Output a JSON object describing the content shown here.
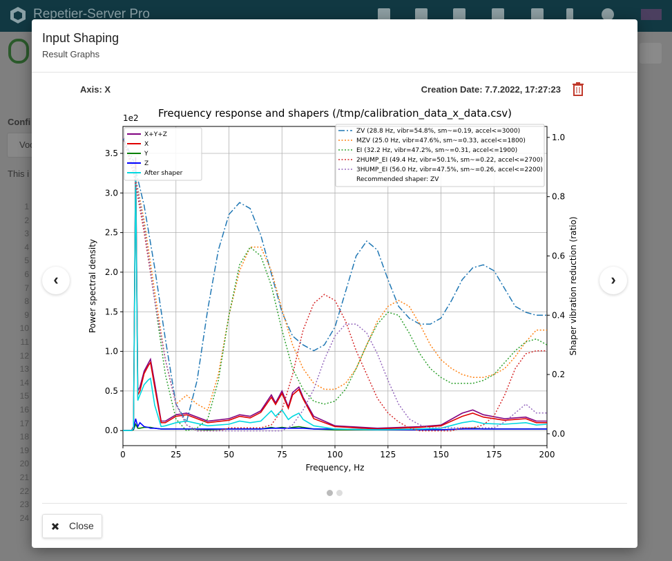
{
  "app": {
    "title": "Repetier-Server Pro"
  },
  "background": {
    "config_label": "Confi",
    "select_text": "Voc",
    "info_text": "This i",
    "line_numbers": [
      1,
      2,
      3,
      4,
      5,
      6,
      7,
      8,
      9,
      10,
      11,
      12,
      13,
      14,
      15,
      16,
      17,
      18,
      19,
      20,
      21,
      22,
      23,
      24
    ]
  },
  "modal": {
    "title": "Input Shaping",
    "subtitle": "Result Graphs",
    "axis": "Axis: X",
    "creation_date": "Creation Date: 7.7.2022, 17:27:23",
    "close": "Close"
  },
  "chart_data": {
    "type": "line",
    "title": "Frequency response and shapers (/tmp/calibration_data_x_data.csv)",
    "x_label": "Frequency, Hz",
    "y_label": "Power spectral density",
    "y2_label": "Shaper vibration reduction (ratio)",
    "y_offset_text": "1e2",
    "annotation": "Recommended shaper: ZV",
    "grid": true,
    "xlim": [
      0,
      200
    ],
    "xticks": [
      0,
      25,
      50,
      75,
      100,
      125,
      150,
      175,
      200
    ],
    "ylim": [
      -0.19,
      3.84
    ],
    "yticks": [
      {
        "value": 0,
        "label": "0.0"
      },
      {
        "value": 0.5,
        "label": "0.5"
      },
      {
        "value": 1,
        "label": "1.0"
      },
      {
        "value": 1.5,
        "label": "1.5"
      },
      {
        "value": 2,
        "label": "2.0"
      },
      {
        "value": 2.5,
        "label": "2.5"
      },
      {
        "value": 3,
        "label": "3.0"
      },
      {
        "value": 3.5,
        "label": "3.5"
      }
    ],
    "y2lim": [
      -0.04,
      1.037
    ],
    "y2ticks": [
      {
        "value": 0,
        "label": "0.0"
      },
      {
        "value": 0.2,
        "label": "0.2"
      },
      {
        "value": 0.4,
        "label": "0.4"
      },
      {
        "value": 0.6,
        "label": "0.6"
      },
      {
        "value": 0.8,
        "label": "0.8"
      },
      {
        "value": 1,
        "label": "1.0"
      }
    ],
    "series": [
      {
        "name": "X+Y+Z",
        "color": "#800080",
        "style": "solid",
        "x": [
          0,
          4,
          5,
          6,
          7,
          8,
          10,
          12,
          13,
          15,
          18,
          20,
          25,
          30,
          40,
          50,
          55,
          60,
          65,
          70,
          72,
          75,
          78,
          80,
          83,
          85,
          90,
          100,
          120,
          140,
          150,
          160,
          165,
          170,
          180,
          190,
          195,
          200
        ],
        "values": [
          0,
          0,
          0.05,
          3.45,
          0.5,
          0.55,
          0.75,
          0.85,
          0.9,
          0.6,
          0.12,
          0.12,
          0.2,
          0.22,
          0.12,
          0.15,
          0.2,
          0.18,
          0.25,
          0.45,
          0.35,
          0.5,
          0.3,
          0.48,
          0.55,
          0.42,
          0.18,
          0.06,
          0.03,
          0.05,
          0.07,
          0.22,
          0.26,
          0.2,
          0.15,
          0.17,
          0.12,
          0.12
        ]
      },
      {
        "name": "X",
        "color": "#e00000",
        "style": "solid",
        "x": [
          0,
          4,
          5,
          6,
          7,
          8,
          10,
          12,
          13,
          15,
          18,
          20,
          25,
          30,
          40,
          50,
          55,
          60,
          65,
          70,
          72,
          75,
          78,
          80,
          83,
          85,
          90,
          100,
          120,
          140,
          150,
          160,
          165,
          170,
          180,
          190,
          195,
          200
        ],
        "values": [
          0,
          0,
          0.04,
          3.4,
          0.45,
          0.5,
          0.72,
          0.82,
          0.86,
          0.55,
          0.1,
          0.1,
          0.18,
          0.2,
          0.1,
          0.13,
          0.18,
          0.16,
          0.23,
          0.42,
          0.33,
          0.47,
          0.28,
          0.45,
          0.52,
          0.4,
          0.15,
          0.05,
          0.02,
          0.04,
          0.06,
          0.18,
          0.22,
          0.17,
          0.13,
          0.15,
          0.1,
          0.1
        ]
      },
      {
        "name": "Y",
        "color": "#008000",
        "style": "solid",
        "x": [
          0,
          4,
          5,
          6,
          7,
          8,
          10,
          12,
          13,
          15,
          18,
          20,
          25,
          30,
          40,
          50,
          55,
          60,
          65,
          70,
          72,
          75,
          78,
          80,
          83,
          85,
          90,
          100,
          120,
          140,
          150,
          160,
          165,
          170,
          180,
          190,
          195,
          200
        ],
        "values": [
          0,
          0,
          0.01,
          0.08,
          0.03,
          0.03,
          0.04,
          0.04,
          0.04,
          0.03,
          0.02,
          0.02,
          0.02,
          0.02,
          0.01,
          0.02,
          0.02,
          0.02,
          0.02,
          0.04,
          0.03,
          0.04,
          0.03,
          0.04,
          0.05,
          0.04,
          0.02,
          0.01,
          0.01,
          0.01,
          0.01,
          0.02,
          0.03,
          0.02,
          0.02,
          0.02,
          0.02,
          0.02
        ]
      },
      {
        "name": "Z",
        "color": "#0000ff",
        "style": "solid",
        "x": [
          0,
          4,
          5,
          6,
          7,
          8,
          10,
          12,
          13,
          15,
          18,
          20,
          25,
          30,
          40,
          50,
          55,
          60,
          65,
          70,
          72,
          75,
          78,
          80,
          83,
          85,
          90,
          100,
          120,
          140,
          150,
          160,
          165,
          170,
          180,
          190,
          195,
          200
        ],
        "values": [
          0,
          0,
          0.02,
          0.15,
          0.05,
          0.1,
          0.05,
          0.04,
          0.03,
          0.03,
          0.02,
          0.02,
          0.02,
          0.02,
          0.02,
          0.02,
          0.02,
          0.02,
          0.02,
          0.03,
          0.03,
          0.03,
          0.03,
          0.03,
          0.03,
          0.03,
          0.02,
          0.02,
          0.01,
          0.01,
          0.01,
          0.02,
          0.02,
          0.02,
          0.02,
          0.02,
          0.02,
          0.02
        ]
      },
      {
        "name": "After shaper",
        "color": "#00d8e0",
        "style": "solid",
        "x": [
          0,
          4,
          5,
          6,
          7,
          8,
          10,
          12,
          13,
          15,
          18,
          20,
          25,
          30,
          40,
          50,
          55,
          60,
          65,
          70,
          72,
          75,
          78,
          80,
          83,
          85,
          90,
          100,
          120,
          140,
          150,
          160,
          165,
          170,
          180,
          190,
          195,
          200
        ],
        "values": [
          0,
          0,
          0.03,
          3.3,
          0.38,
          0.45,
          0.58,
          0.64,
          0.66,
          0.32,
          0.05,
          0.06,
          0.1,
          0.12,
          0.06,
          0.08,
          0.12,
          0.1,
          0.12,
          0.25,
          0.18,
          0.26,
          0.14,
          0.18,
          0.22,
          0.14,
          0.06,
          0.02,
          0.01,
          0.02,
          0.03,
          0.1,
          0.12,
          0.09,
          0.08,
          0.1,
          0.07,
          0.08
        ]
      },
      {
        "name": "ZV (28.8 Hz, vibr=54.8%, sm~=0.19, accel<=3000)",
        "color": "#1f77b4",
        "style": "dashdot",
        "axis": "y2",
        "x": [
          0,
          5,
          10,
          15,
          20,
          25,
          30,
          35,
          40,
          45,
          50,
          55,
          60,
          65,
          70,
          75,
          80,
          85,
          90,
          95,
          100,
          105,
          110,
          115,
          120,
          125,
          130,
          135,
          140,
          145,
          150,
          155,
          160,
          165,
          170,
          175,
          180,
          185,
          190,
          195,
          200
        ],
        "values": [
          1.0,
          0.92,
          0.77,
          0.56,
          0.32,
          0.1,
          0.04,
          0.18,
          0.42,
          0.62,
          0.74,
          0.78,
          0.76,
          0.67,
          0.54,
          0.41,
          0.33,
          0.3,
          0.28,
          0.3,
          0.36,
          0.48,
          0.6,
          0.65,
          0.62,
          0.52,
          0.43,
          0.39,
          0.37,
          0.37,
          0.39,
          0.45,
          0.52,
          0.56,
          0.57,
          0.55,
          0.49,
          0.43,
          0.41,
          0.4,
          0.4
        ]
      },
      {
        "name": "MZV (25.0 Hz, vibr=47.6%, sm~=0.33, accel<=1800)",
        "color": "#ff7f0e",
        "style": "dotted",
        "axis": "y2",
        "x": [
          0,
          5,
          10,
          15,
          20,
          25,
          30,
          35,
          40,
          45,
          50,
          55,
          60,
          65,
          70,
          75,
          80,
          85,
          90,
          95,
          100,
          105,
          110,
          115,
          120,
          125,
          130,
          135,
          140,
          145,
          150,
          155,
          160,
          165,
          170,
          175,
          180,
          185,
          190,
          195,
          200
        ],
        "values": [
          1.0,
          0.9,
          0.72,
          0.48,
          0.25,
          0.1,
          0.13,
          0.1,
          0.08,
          0.2,
          0.4,
          0.55,
          0.63,
          0.63,
          0.55,
          0.42,
          0.3,
          0.22,
          0.17,
          0.15,
          0.15,
          0.17,
          0.22,
          0.3,
          0.38,
          0.43,
          0.45,
          0.43,
          0.37,
          0.3,
          0.25,
          0.22,
          0.2,
          0.19,
          0.19,
          0.2,
          0.22,
          0.26,
          0.31,
          0.35,
          0.35
        ]
      },
      {
        "name": "EI (32.2 Hz, vibr=47.2%, sm~=0.31, accel<=1900)",
        "color": "#2ca02c",
        "style": "dotted",
        "axis": "y2",
        "x": [
          0,
          5,
          10,
          15,
          20,
          25,
          30,
          35,
          40,
          45,
          50,
          55,
          60,
          65,
          70,
          75,
          80,
          85,
          90,
          95,
          100,
          105,
          110,
          115,
          120,
          125,
          130,
          135,
          140,
          145,
          150,
          155,
          160,
          165,
          170,
          175,
          180,
          185,
          190,
          195,
          200
        ],
        "values": [
          1.0,
          0.9,
          0.7,
          0.45,
          0.2,
          0.05,
          0.01,
          0.02,
          0.05,
          0.18,
          0.4,
          0.57,
          0.63,
          0.6,
          0.5,
          0.35,
          0.22,
          0.15,
          0.11,
          0.1,
          0.11,
          0.15,
          0.22,
          0.3,
          0.37,
          0.41,
          0.4,
          0.34,
          0.27,
          0.22,
          0.19,
          0.17,
          0.17,
          0.17,
          0.18,
          0.2,
          0.24,
          0.28,
          0.31,
          0.32,
          0.3
        ]
      },
      {
        "name": "2HUMP_EI (49.4 Hz, vibr=50.1%, sm~=0.22, accel<=2700)",
        "color": "#d62728",
        "style": "dotted",
        "axis": "y2",
        "x": [
          0,
          5,
          10,
          15,
          20,
          25,
          30,
          35,
          40,
          45,
          50,
          55,
          60,
          65,
          70,
          75,
          80,
          85,
          90,
          95,
          100,
          105,
          110,
          115,
          120,
          125,
          130,
          135,
          140,
          145,
          150,
          155,
          160,
          165,
          170,
          175,
          180,
          185,
          190,
          195,
          200
        ],
        "values": [
          1.0,
          0.88,
          0.68,
          0.45,
          0.25,
          0.1,
          0.03,
          0.01,
          0.01,
          0.01,
          0.02,
          0.02,
          0.02,
          0.02,
          0.03,
          0.08,
          0.2,
          0.35,
          0.44,
          0.47,
          0.45,
          0.38,
          0.28,
          0.2,
          0.12,
          0.07,
          0.04,
          0.02,
          0.01,
          0.01,
          0.01,
          0.01,
          0.02,
          0.02,
          0.03,
          0.06,
          0.13,
          0.22,
          0.27,
          0.28,
          0.28
        ]
      },
      {
        "name": "3HUMP_EI (56.0 Hz, vibr=47.5%, sm~=0.26, accel<=2200)",
        "color": "#9467bd",
        "style": "dotted",
        "axis": "y2",
        "x": [
          0,
          5,
          10,
          15,
          20,
          25,
          30,
          35,
          40,
          45,
          50,
          55,
          60,
          65,
          70,
          75,
          80,
          85,
          90,
          95,
          100,
          105,
          110,
          115,
          120,
          125,
          130,
          135,
          140,
          145,
          150,
          155,
          160,
          165,
          170,
          175,
          180,
          185,
          190,
          195,
          200
        ],
        "values": [
          1.0,
          0.9,
          0.7,
          0.45,
          0.25,
          0.1,
          0.03,
          0.01,
          0.01,
          0.01,
          0.01,
          0.01,
          0.01,
          0.01,
          0.01,
          0.01,
          0.03,
          0.08,
          0.15,
          0.25,
          0.33,
          0.37,
          0.37,
          0.34,
          0.27,
          0.18,
          0.1,
          0.05,
          0.03,
          0.02,
          0.02,
          0.02,
          0.02,
          0.02,
          0.02,
          0.02,
          0.04,
          0.07,
          0.1,
          0.07,
          0.07
        ]
      }
    ]
  }
}
